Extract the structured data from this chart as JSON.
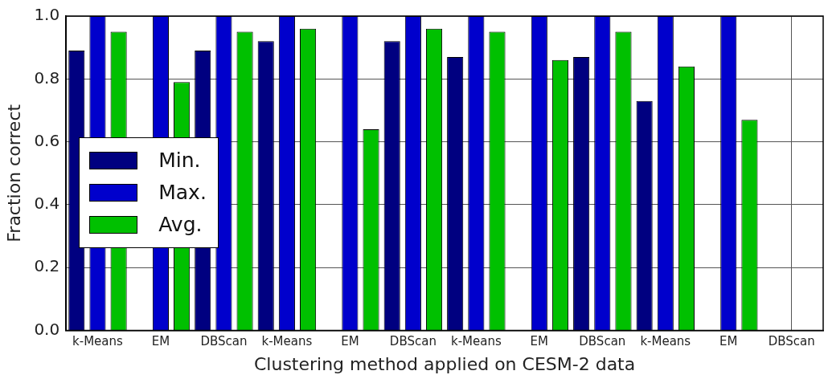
{
  "chart_data": {
    "type": "bar",
    "xlabel": "Clustering method applied on CESM-2 data",
    "ylabel": "Fraction correct",
    "categories": [
      "k-Means",
      "EM",
      "DBScan",
      "k-Means",
      "EM",
      "DBScan",
      "k-Means",
      "EM",
      "DBScan",
      "k-Means",
      "EM",
      "DBScan"
    ],
    "series": [
      {
        "name": "Min.",
        "color": "#000080",
        "values": [
          0.89,
          0,
          0.89,
          0.92,
          0,
          0.92,
          0.87,
          0,
          0.87,
          0.73,
          0,
          0
        ]
      },
      {
        "name": "Max.",
        "color": "#0000cc",
        "values": [
          1,
          1,
          1,
          1,
          1,
          1,
          1,
          1,
          1,
          1,
          1,
          0
        ]
      },
      {
        "name": "Avg.",
        "color": "#00c000",
        "values": [
          0.95,
          0.79,
          0.95,
          0.96,
          0.64,
          0.96,
          0.95,
          0.86,
          0.95,
          0.84,
          0.67,
          0
        ]
      }
    ],
    "ylim": [
      0,
      1
    ],
    "yticks": [
      {
        "value": 0,
        "label": "0.0"
      },
      {
        "value": 0.2,
        "label": "0.2"
      },
      {
        "value": 0.4,
        "label": "0.4"
      },
      {
        "value": 0.6,
        "label": "0.6"
      },
      {
        "value": 0.8,
        "label": "0.8"
      },
      {
        "value": 1,
        "label": "1.0"
      }
    ],
    "grid": true,
    "legend": "left"
  }
}
